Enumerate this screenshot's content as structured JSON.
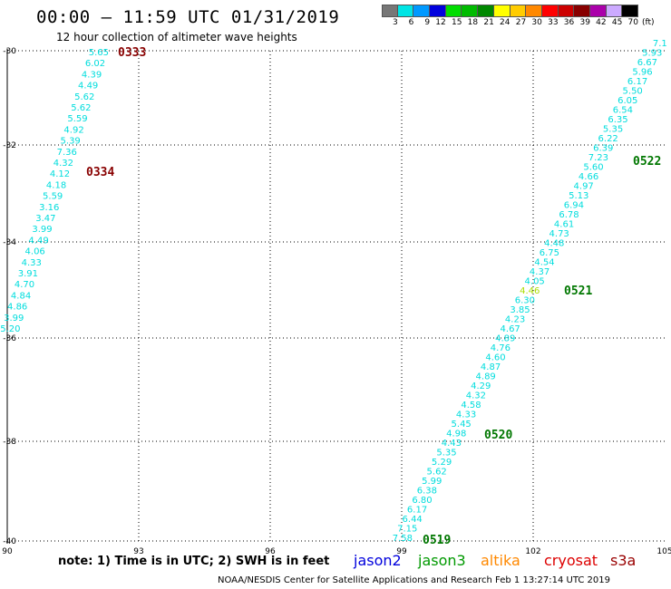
{
  "header": {
    "title": "00:00 – 11:59 UTC 01/31/2019",
    "subtitle": "12 hour collection of altimeter wave heights"
  },
  "color_scale": {
    "unit": "(ft)",
    "bins": [
      {
        "label": "3",
        "color": "#777777"
      },
      {
        "label": "6",
        "color": "#00e5e5"
      },
      {
        "label": "9",
        "color": "#0099ff"
      },
      {
        "label": "12",
        "color": "#0000dd"
      },
      {
        "label": "15",
        "color": "#00dd00"
      },
      {
        "label": "18",
        "color": "#00bb00"
      },
      {
        "label": "21",
        "color": "#008800"
      },
      {
        "label": "24",
        "color": "#ffff00"
      },
      {
        "label": "27",
        "color": "#ffcc00"
      },
      {
        "label": "30",
        "color": "#ff8800"
      },
      {
        "label": "33",
        "color": "#ff0000"
      },
      {
        "label": "36",
        "color": "#cc0000"
      },
      {
        "label": "39",
        "color": "#880000"
      },
      {
        "label": "42",
        "color": "#aa00aa"
      },
      {
        "label": "45",
        "color": "#ccaaff"
      },
      {
        "label": "70",
        "color": "#000000"
      }
    ]
  },
  "axes": {
    "x_ticks": [
      "90",
      "93",
      "96",
      "99",
      "102",
      "105"
    ],
    "y_ticks": [
      "-30",
      "-32",
      "-34",
      "-36",
      "-38",
      "-40"
    ]
  },
  "colors": {
    "cyan": "#00dddd",
    "yellow_green": "#aadd00",
    "dark_red": "#880000",
    "dark_green": "#007700"
  },
  "tracks": [
    {
      "values": [
        "5.65",
        "6.02",
        "4.39",
        "4.49",
        "5.62",
        "5.62",
        "5.59",
        "4.92",
        "5.39",
        "7.36",
        "4.32",
        "4.12",
        "4.18",
        "5.59",
        "3.16",
        "3.47",
        "3.99",
        "4.49",
        "4.06",
        "4.33",
        "3.91",
        "4.70",
        "4.84",
        "4.86",
        "3.99",
        "5.20"
      ]
    },
    {
      "values": [
        "7.58",
        "7.15",
        "6.44",
        "6.17",
        "6.80",
        "6.38",
        "5.99",
        "5.62",
        "5.29",
        "5.35",
        "4.43",
        "4.98",
        "5.45",
        "4.33",
        "4.58",
        "4.32",
        "4.29",
        "4.89",
        "4.87",
        "4.60",
        "4.76",
        "4.89",
        "4.67",
        "4.23",
        "3.85",
        "6.30",
        "4.46",
        "4.05",
        "4.37",
        "4.54",
        "6.75",
        "4.48",
        "4.73",
        "4.61",
        "6.78",
        "6.94",
        "5.13",
        "4.97",
        "4.66",
        "5.60",
        "7.23",
        "6.39",
        "6.22",
        "5.35",
        "6.35",
        "6.54",
        "6.05",
        "5.50",
        "6.17",
        "5.96",
        "6.67",
        "5.93",
        "7.1"
      ]
    }
  ],
  "time_labels": [
    "0333",
    "0334",
    "0519",
    "0520",
    "0521",
    "0522"
  ],
  "note": "note:  1) Time is in UTC; 2) SWH is in feet",
  "satellites": [
    {
      "name": "jason2",
      "color": "#0000dd"
    },
    {
      "name": "jason3",
      "color": "#009900"
    },
    {
      "name": "altika",
      "color": "#ff8800"
    },
    {
      "name": "cryosat",
      "color": "#dd0000"
    },
    {
      "name": "s3a",
      "color": "#990000"
    }
  ],
  "footer": "NOAA/NESDIS Center for Satellite Applications and Research    Feb  1 13:27:14 UTC 2019"
}
